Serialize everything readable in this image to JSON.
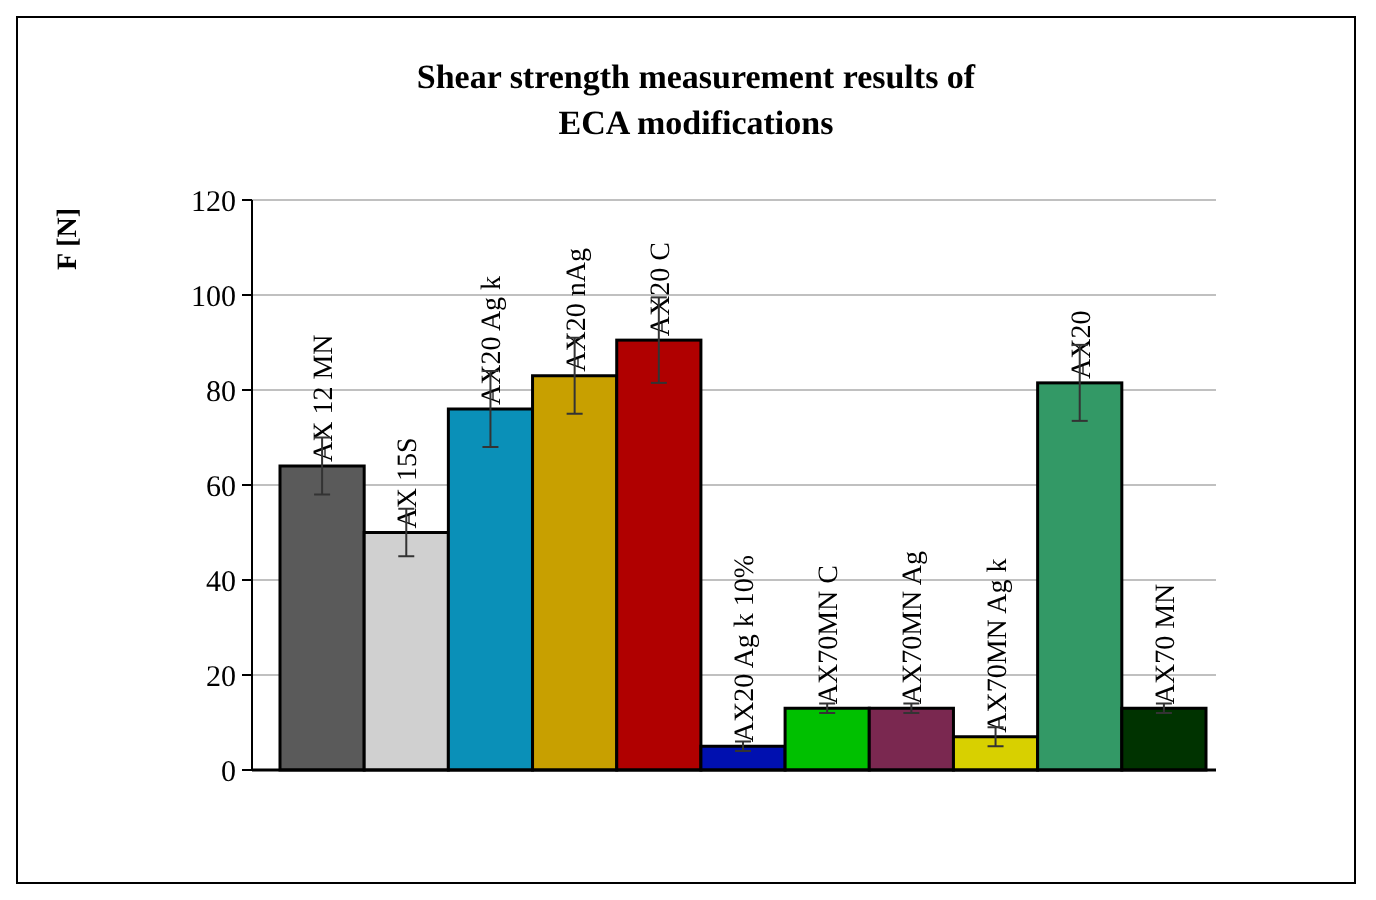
{
  "chart_data": {
    "type": "bar",
    "title": "Shear strength measurement results of\nECA modifications",
    "ylabel": "F [N]",
    "categories": [
      "AX 12 MN",
      "AX 15S",
      "AX20 Ag k",
      "AX20 nAg",
      "AX20 C",
      "AX20 Ag k 10%",
      "AX70MN C",
      "AX70MN Ag",
      "AX70MN Ag k",
      "AX20",
      "AX70 MN"
    ],
    "values": [
      64,
      50,
      76,
      83,
      90.5,
      5,
      13,
      13,
      7,
      81.5,
      13
    ],
    "errors": [
      6,
      5,
      8,
      8,
      9,
      1,
      1,
      1,
      2,
      8,
      1
    ],
    "colors": [
      "#5a5a5a",
      "#d0d0d0",
      "#0a90b8",
      "#c8a000",
      "#b00000",
      "#0010b0",
      "#00c000",
      "#7a2850",
      "#d8d000",
      "#339966",
      "#003300"
    ],
    "ylim": [
      0,
      120
    ],
    "yticks": [
      0,
      20,
      40,
      60,
      80,
      100,
      120
    ],
    "grid": "y"
  }
}
